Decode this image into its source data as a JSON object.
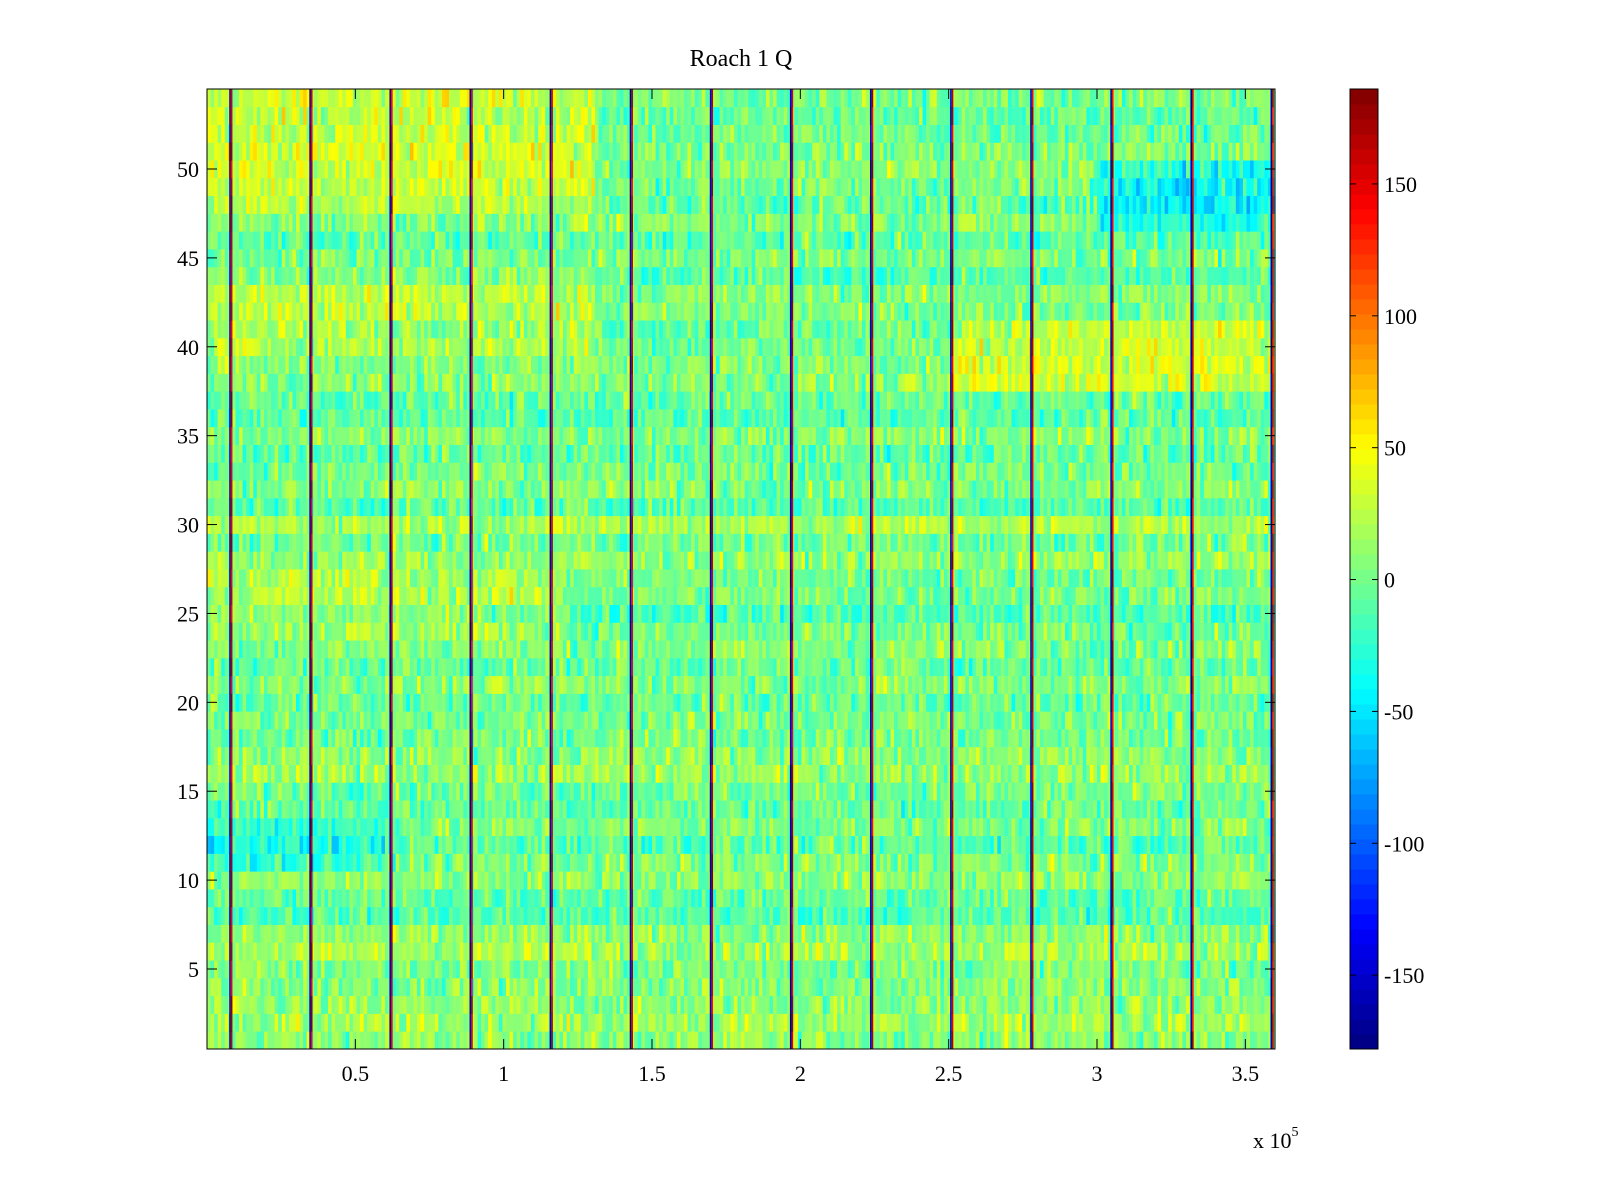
{
  "chart_data": {
    "type": "heatmap",
    "title": "Roach 1 Q",
    "xlabel": "",
    "ylabel": "",
    "x_multiplier_label": "x 10",
    "x_multiplier_exponent": "5",
    "xlim": [
      0,
      360000
    ],
    "ylim": [
      0.5,
      54.5
    ],
    "xticks": [
      {
        "value": 50000,
        "label": "0.5"
      },
      {
        "value": 100000,
        "label": "1"
      },
      {
        "value": 150000,
        "label": "1.5"
      },
      {
        "value": 200000,
        "label": "2"
      },
      {
        "value": 250000,
        "label": "2.5"
      },
      {
        "value": 300000,
        "label": "3"
      },
      {
        "value": 350000,
        "label": "3.5"
      }
    ],
    "yticks": [
      {
        "value": 5,
        "label": "5"
      },
      {
        "value": 10,
        "label": "10"
      },
      {
        "value": 15,
        "label": "15"
      },
      {
        "value": 20,
        "label": "20"
      },
      {
        "value": 25,
        "label": "25"
      },
      {
        "value": 30,
        "label": "30"
      },
      {
        "value": 35,
        "label": "35"
      },
      {
        "value": 40,
        "label": "40"
      },
      {
        "value": 45,
        "label": "45"
      },
      {
        "value": 50,
        "label": "50"
      }
    ],
    "colorbar": {
      "colormap": "jet",
      "clim": [
        -178,
        186
      ],
      "ticks": [
        {
          "value": 150,
          "label": "150"
        },
        {
          "value": 100,
          "label": "100"
        },
        {
          "value": 50,
          "label": "50"
        },
        {
          "value": 0,
          "label": "0"
        },
        {
          "value": -50,
          "label": "-50"
        },
        {
          "value": -100,
          "label": "-100"
        },
        {
          "value": -150,
          "label": "-150"
        }
      ]
    },
    "rows": 54,
    "columns": 360000,
    "background_mean": 0,
    "background_spread": 30,
    "spike_columns": [
      8000,
      35000,
      62000,
      89000,
      116000,
      143000,
      170000,
      197000,
      224000,
      251000,
      278000,
      305000,
      332000,
      359000
    ],
    "spike_value_range": [
      -178,
      186
    ],
    "row_bias": [
      {
        "rows": [
          48,
          54
        ],
        "segment": [
          0,
          130000
        ],
        "bias": 30
      },
      {
        "rows": [
          47,
          50
        ],
        "segment": [
          300000,
          360000
        ],
        "bias": -35
      },
      {
        "rows": [
          38,
          41
        ],
        "segment": [
          250000,
          360000
        ],
        "bias": 30
      },
      {
        "rows": [
          40,
          44
        ],
        "segment": [
          0,
          130000
        ],
        "bias": 20
      },
      {
        "rows": [
          24,
          27
        ],
        "segment": [
          0,
          120000
        ],
        "bias": 20
      },
      {
        "rows": [
          11,
          13
        ],
        "segment": [
          0,
          60000
        ],
        "bias": -25
      }
    ]
  }
}
